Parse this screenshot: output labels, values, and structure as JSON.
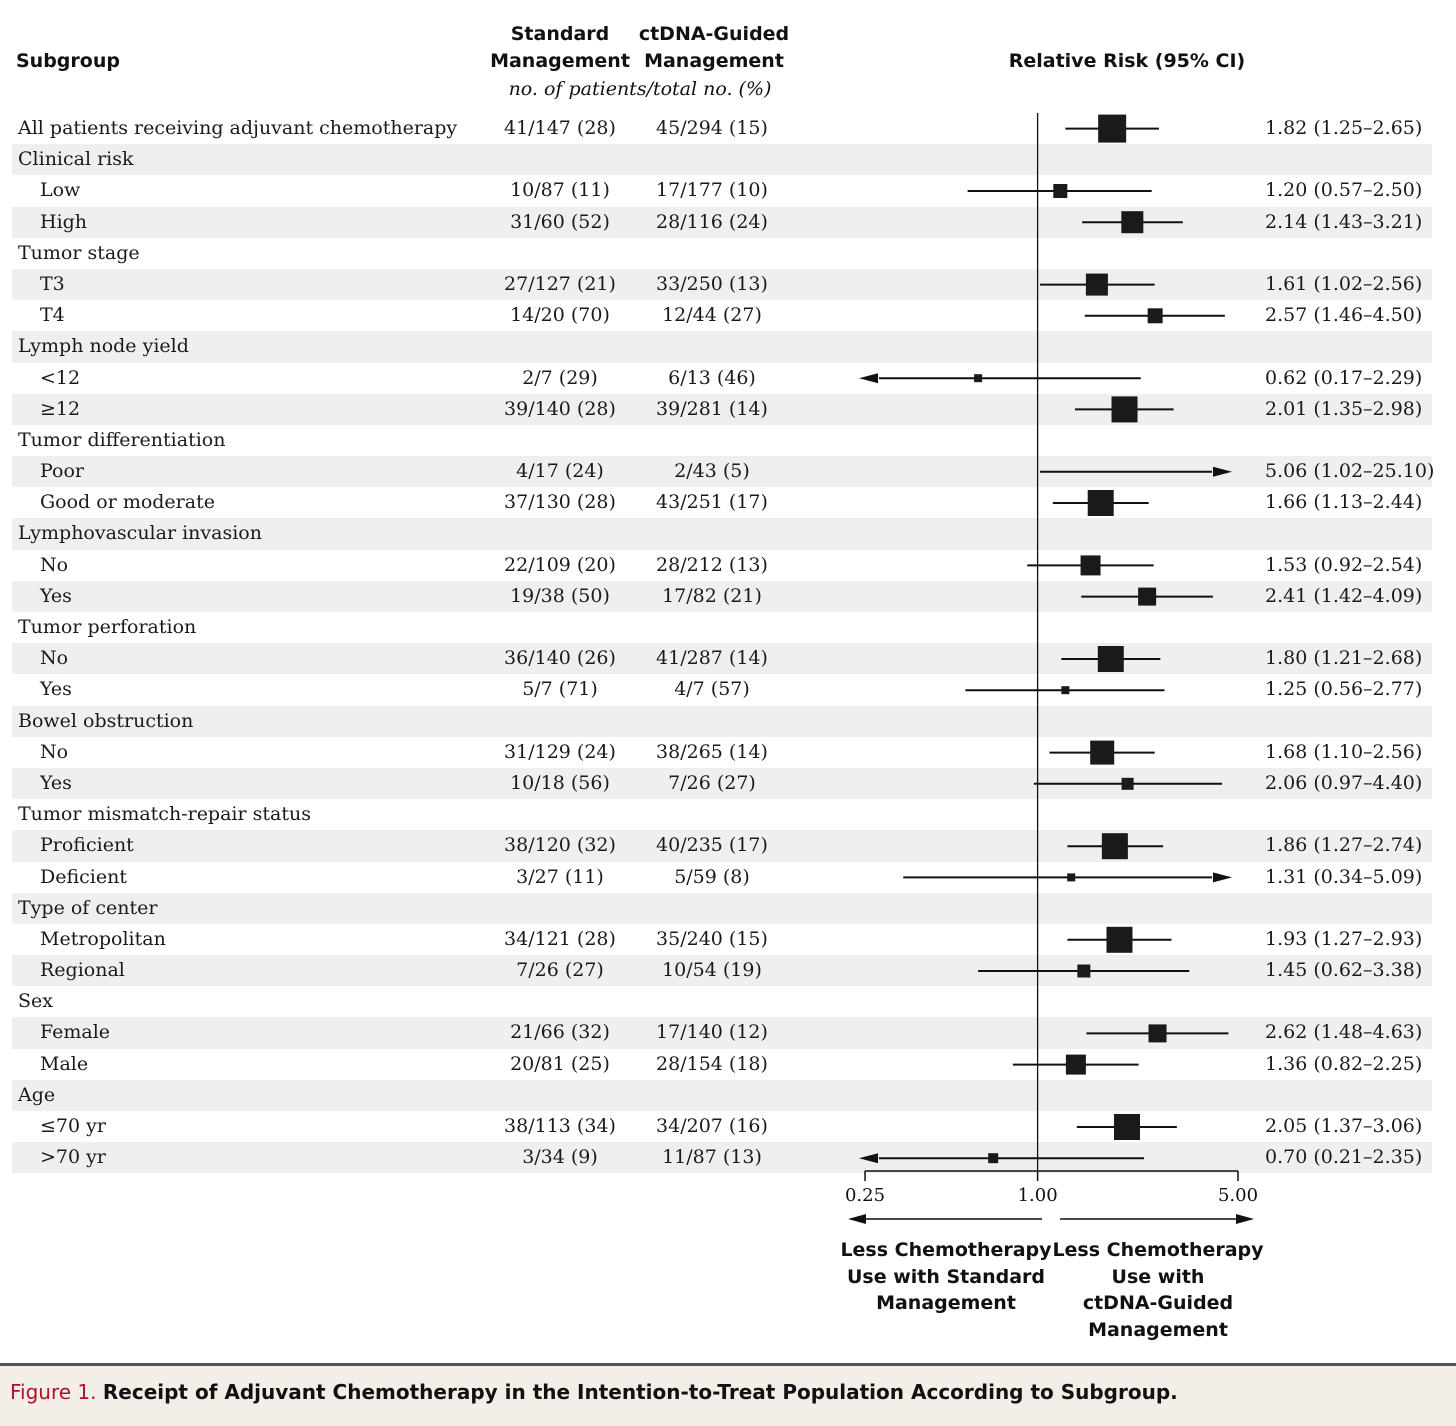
{
  "header": {
    "subgroup": "Subgroup",
    "standard_line1": "Standard",
    "standard_line2": "Management",
    "ctdna_line1": "ctDNA-Guided",
    "ctdna_line2": "Management",
    "units": "no. of patients/total no. (%)",
    "relative_risk": "Relative Risk (95% CI)"
  },
  "chart_data": {
    "type": "forest",
    "x_scale": "log",
    "xlim": [
      0.25,
      5.0
    ],
    "x_ticks": [
      "0.25",
      "1.00",
      "5.00"
    ],
    "reference_line": 1.0,
    "direction_labels": {
      "left": [
        "Less Chemotherapy",
        "Use with Standard",
        "Management"
      ],
      "right": [
        "Less Chemotherapy",
        "Use with",
        "ctDNA-Guided",
        "Management"
      ]
    },
    "rows": [
      {
        "label": "All patients receiving adjuvant chemotherapy",
        "level": 0,
        "standard": "41/147 (28)",
        "ctdna": "45/294 (15)",
        "rr_text": "1.82 (1.25–2.65)",
        "rr": 1.82,
        "lo": 1.25,
        "hi": 2.65,
        "marker": 28
      },
      {
        "label": "Clinical risk",
        "level": 0
      },
      {
        "label": "Low",
        "level": 1,
        "standard": "10/87 (11)",
        "ctdna": "17/177 (10)",
        "rr_text": "1.20 (0.57–2.50)",
        "rr": 1.2,
        "lo": 0.57,
        "hi": 2.5,
        "marker": 14
      },
      {
        "label": "High",
        "level": 1,
        "standard": "31/60 (52)",
        "ctdna": "28/116 (24)",
        "rr_text": "2.14 (1.43–3.21)",
        "rr": 2.14,
        "lo": 1.43,
        "hi": 3.21,
        "marker": 22
      },
      {
        "label": "Tumor stage",
        "level": 0
      },
      {
        "label": "T3",
        "level": 1,
        "standard": "27/127 (21)",
        "ctdna": "33/250 (13)",
        "rr_text": "1.61 (1.02–2.56)",
        "rr": 1.61,
        "lo": 1.02,
        "hi": 2.56,
        "marker": 22
      },
      {
        "label": "T4",
        "level": 1,
        "standard": "14/20 (70)",
        "ctdna": "12/44 (27)",
        "rr_text": "2.57 (1.46–4.50)",
        "rr": 2.57,
        "lo": 1.46,
        "hi": 4.5,
        "marker": 15
      },
      {
        "label": "Lymph node yield",
        "level": 0
      },
      {
        "label": "<12",
        "level": 1,
        "standard": "2/7 (29)",
        "ctdna": "6/13 (46)",
        "rr_text": "0.62 (0.17–2.29)",
        "rr": 0.62,
        "lo": 0.17,
        "hi": 2.29,
        "marker": 8,
        "arrow_left": true
      },
      {
        "label": "≥12",
        "level": 1,
        "standard": "39/140 (28)",
        "ctdna": "39/281 (14)",
        "rr_text": "2.01 (1.35–2.98)",
        "rr": 2.01,
        "lo": 1.35,
        "hi": 2.98,
        "marker": 26
      },
      {
        "label": "Tumor differentiation",
        "level": 0
      },
      {
        "label": "Poor",
        "level": 1,
        "standard": "4/17 (24)",
        "ctdna": "2/43 (5)",
        "rr_text": "5.06 (1.02–25.10)",
        "rr": 5.06,
        "lo": 1.02,
        "hi": 25.1,
        "marker": 0,
        "arrow_right": true
      },
      {
        "label": "Good or moderate",
        "level": 1,
        "standard": "37/130 (28)",
        "ctdna": "43/251 (17)",
        "rr_text": "1.66 (1.13–2.44)",
        "rr": 1.66,
        "lo": 1.13,
        "hi": 2.44,
        "marker": 26
      },
      {
        "label": "Lymphovascular invasion",
        "level": 0
      },
      {
        "label": "No",
        "level": 1,
        "standard": "22/109 (20)",
        "ctdna": "28/212 (13)",
        "rr_text": "1.53 (0.92–2.54)",
        "rr": 1.53,
        "lo": 0.92,
        "hi": 2.54,
        "marker": 20
      },
      {
        "label": "Yes",
        "level": 1,
        "standard": "19/38 (50)",
        "ctdna": "17/82 (21)",
        "rr_text": "2.41 (1.42–4.09)",
        "rr": 2.41,
        "lo": 1.42,
        "hi": 4.09,
        "marker": 18
      },
      {
        "label": "Tumor perforation",
        "level": 0
      },
      {
        "label": "No",
        "level": 1,
        "standard": "36/140 (26)",
        "ctdna": "41/287 (14)",
        "rr_text": "1.80 (1.21–2.68)",
        "rr": 1.8,
        "lo": 1.21,
        "hi": 2.68,
        "marker": 26
      },
      {
        "label": "Yes",
        "level": 1,
        "standard": "5/7 (71)",
        "ctdna": "4/7 (57)",
        "rr_text": "1.25 (0.56–2.77)",
        "rr": 1.25,
        "lo": 0.56,
        "hi": 2.77,
        "marker": 8
      },
      {
        "label": "Bowel obstruction",
        "level": 0
      },
      {
        "label": "No",
        "level": 1,
        "standard": "31/129 (24)",
        "ctdna": "38/265 (14)",
        "rr_text": "1.68 (1.10–2.56)",
        "rr": 1.68,
        "lo": 1.1,
        "hi": 2.56,
        "marker": 24
      },
      {
        "label": "Yes",
        "level": 1,
        "standard": "10/18 (56)",
        "ctdna": "7/26 (27)",
        "rr_text": "2.06 (0.97–4.40)",
        "rr": 2.06,
        "lo": 0.97,
        "hi": 4.4,
        "marker": 12
      },
      {
        "label": "Tumor mismatch-repair status",
        "level": 0
      },
      {
        "label": "Proficient",
        "level": 1,
        "standard": "38/120 (32)",
        "ctdna": "40/235 (17)",
        "rr_text": "1.86 (1.27–2.74)",
        "rr": 1.86,
        "lo": 1.27,
        "hi": 2.74,
        "marker": 26
      },
      {
        "label": "Deficient",
        "level": 1,
        "standard": "3/27 (11)",
        "ctdna": "5/59 (8)",
        "rr_text": "1.31 (0.34–5.09)",
        "rr": 1.31,
        "lo": 0.34,
        "hi": 5.09,
        "marker": 8,
        "arrow_right": true
      },
      {
        "label": "Type of center",
        "level": 0
      },
      {
        "label": "Metropolitan",
        "level": 1,
        "standard": "34/121 (28)",
        "ctdna": "35/240 (15)",
        "rr_text": "1.93 (1.27–2.93)",
        "rr": 1.93,
        "lo": 1.27,
        "hi": 2.93,
        "marker": 26
      },
      {
        "label": "Regional",
        "level": 1,
        "standard": "7/26 (27)",
        "ctdna": "10/54 (19)",
        "rr_text": "1.45 (0.62–3.38)",
        "rr": 1.45,
        "lo": 0.62,
        "hi": 3.38,
        "marker": 13
      },
      {
        "label": "Sex",
        "level": 0
      },
      {
        "label": "Female",
        "level": 1,
        "standard": "21/66 (32)",
        "ctdna": "17/140 (12)",
        "rr_text": "2.62 (1.48–4.63)",
        "rr": 2.62,
        "lo": 1.48,
        "hi": 4.63,
        "marker": 18
      },
      {
        "label": "Male",
        "level": 1,
        "standard": "20/81 (25)",
        "ctdna": "28/154 (18)",
        "rr_text": "1.36 (0.82–2.25)",
        "rr": 1.36,
        "lo": 0.82,
        "hi": 2.25,
        "marker": 20
      },
      {
        "label": "Age",
        "level": 0
      },
      {
        "label": "≤70 yr",
        "level": 1,
        "standard": "38/113 (34)",
        "ctdna": "34/207 (16)",
        "rr_text": "2.05 (1.37–3.06)",
        "rr": 2.05,
        "lo": 1.37,
        "hi": 3.06,
        "marker": 26
      },
      {
        "label": ">70 yr",
        "level": 1,
        "standard": "3/34 (9)",
        "ctdna": "11/87 (13)",
        "rr_text": "0.70 (0.21–2.35)",
        "rr": 0.7,
        "lo": 0.21,
        "hi": 2.35,
        "marker": 10,
        "arrow_left": true
      }
    ]
  },
  "caption": {
    "figure_number": "Figure 1.",
    "title": "Receipt of Adjuvant Chemotherapy in the Intention-to-Treat Population According to Subgroup."
  },
  "colors": {
    "marker": "#1a1a1a",
    "shading": "#efefef",
    "figure_number": "#b0102a"
  }
}
